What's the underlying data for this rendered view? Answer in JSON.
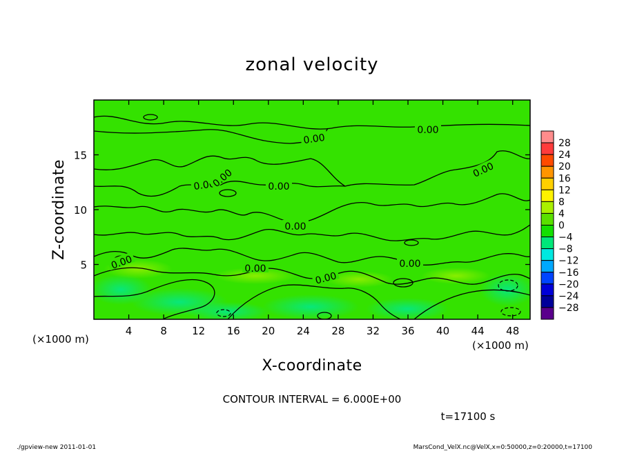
{
  "chart_data": {
    "type": "contour",
    "title": "zonal velocity",
    "xlabel": "X-coordinate",
    "ylabel": "Z-coordinate",
    "x_unit": "(×1000 m)",
    "y_unit": "(×1000 m)",
    "xlim": [
      0,
      50
    ],
    "ylim": [
      0,
      20
    ],
    "x_ticks": [
      4,
      8,
      12,
      16,
      20,
      24,
      28,
      32,
      36,
      40,
      44,
      48
    ],
    "y_ticks": [
      5,
      10,
      15
    ],
    "contour_interval": "CONTOUR INTERVAL = 6.000E+00",
    "contour_labels": [
      "0.00",
      "0.00",
      "0.00",
      "0.00",
      "0.00",
      "0.00",
      "0.00",
      "0.00",
      "0.00",
      "0.00",
      "0.00"
    ],
    "colorbar": {
      "levels": [
        "28",
        "24",
        "20",
        "16",
        "12",
        "8",
        "4",
        "0",
        "−4",
        "−8",
        "−12",
        "−16",
        "−20",
        "−24",
        "−28"
      ],
      "colors": [
        "#ff8c8c",
        "#ff3b3b",
        "#ff4a00",
        "#ff9500",
        "#ffd000",
        "#fff200",
        "#aaf000",
        "#5ae000",
        "#14e000",
        "#00e87a",
        "#00e8e0",
        "#00a8ff",
        "#0044ff",
        "#0000d8",
        "#00009a",
        "#5a008c"
      ]
    },
    "time_label": "t=17100 s",
    "grid": false
  },
  "footer": {
    "left": "./gpview-new   2011-01-01",
    "right": "MarsCond_VelX.nc@VelX,x=0:50000,z=0:20000,t=17100"
  }
}
